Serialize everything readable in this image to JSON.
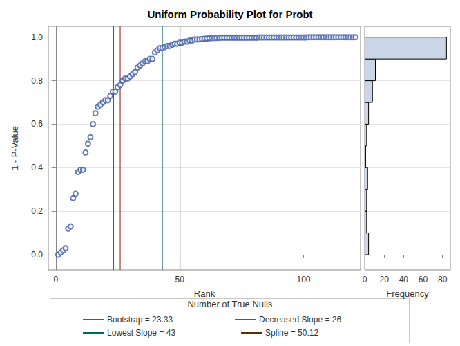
{
  "chart_data": [
    {
      "type": "scatter",
      "title": "Uniform Probability Plot for Probt",
      "x_label": "Rank",
      "y_label": "1 - P-Value",
      "x": [
        1,
        2,
        3,
        4,
        5,
        6,
        7,
        8,
        9,
        10,
        11,
        12,
        13,
        14,
        15,
        16,
        17,
        18,
        19,
        20,
        21,
        22,
        23,
        24,
        25,
        26,
        27,
        28,
        29,
        30,
        31,
        32,
        33,
        34,
        35,
        36,
        37,
        38,
        39,
        40,
        41,
        42,
        43,
        44,
        45,
        46,
        47,
        48,
        49,
        50,
        51,
        52,
        53,
        54,
        55,
        56,
        57,
        58,
        59,
        60,
        61,
        62,
        63,
        64,
        65,
        66,
        67,
        68,
        69,
        70,
        71,
        72,
        73,
        74,
        75,
        76,
        77,
        78,
        79,
        80,
        81,
        82,
        83,
        84,
        85,
        86,
        87,
        88,
        89,
        90,
        91,
        92,
        93,
        94,
        95,
        96,
        97,
        98,
        99,
        100,
        101,
        102,
        103,
        104,
        105,
        106,
        107,
        108,
        109,
        110,
        111,
        112,
        113,
        114,
        115,
        116,
        117,
        118,
        119,
        120,
        121
      ],
      "values": [
        0,
        0.01,
        0.02,
        0.03,
        0.12,
        0.13,
        0.26,
        0.28,
        0.38,
        0.39,
        0.39,
        0.47,
        0.51,
        0.54,
        0.6,
        0.65,
        0.68,
        0.69,
        0.7,
        0.71,
        0.71,
        0.73,
        0.75,
        0.75,
        0.77,
        0.78,
        0.8,
        0.81,
        0.81,
        0.82,
        0.83,
        0.84,
        0.86,
        0.87,
        0.88,
        0.89,
        0.89,
        0.9,
        0.9,
        0.93,
        0.94,
        0.95,
        0.95,
        0.955,
        0.96,
        0.96,
        0.965,
        0.97,
        0.97,
        0.975,
        0.975,
        0.98,
        0.98,
        0.985,
        0.985,
        0.99,
        0.99,
        0.99,
        0.992,
        0.993,
        0.994,
        0.995,
        0.996,
        0.996,
        0.997,
        0.997,
        0.998,
        0.998,
        0.998,
        0.998,
        0.998,
        0.998,
        0.998,
        0.998,
        0.998,
        0.998,
        0.998,
        0.998,
        0.998,
        0.998,
        0.998,
        0.999,
        0.999,
        0.999,
        0.999,
        0.999,
        0.999,
        0.999,
        0.999,
        0.999,
        0.999,
        0.999,
        0.999,
        0.999,
        0.999,
        0.999,
        0.999,
        0.999,
        0.999,
        0.999,
        0.999,
        1,
        1,
        1,
        1,
        1,
        1,
        1,
        1,
        1,
        1,
        1,
        1,
        1,
        1,
        1,
        1,
        1,
        1,
        1,
        1
      ],
      "xlim": [
        -3,
        123
      ],
      "xticks": [
        0,
        50,
        100
      ],
      "ylim": [
        -0.07,
        1.05
      ],
      "yticks": [
        {
          "value": 0,
          "label": "0.0"
        },
        {
          "value": 0.2,
          "label": "0.2"
        },
        {
          "value": 0.4,
          "label": "0.4"
        },
        {
          "value": 0.6,
          "label": "0.6"
        },
        {
          "value": 0.8,
          "label": "0.8"
        },
        {
          "value": 1,
          "label": "1.0"
        }
      ],
      "grid": true,
      "color": "#3f5aa8",
      "marker": "circle",
      "legend_title": "Number of True Nulls",
      "lines": [
        {
          "name": "Bootstrap = 23.33",
          "value": 23.33,
          "color": "#445694"
        },
        {
          "name": "Decreased Slope = 26",
          "value": 26,
          "color": "#a23a2e"
        },
        {
          "name": "Lowest Slope = 43",
          "value": 43,
          "color": "#01665e"
        },
        {
          "name": "Spline = 50.12",
          "value": 50.12,
          "color": "#543005"
        }
      ]
    },
    {
      "type": "histogram",
      "x_label": "Frequency",
      "bins": [
        0,
        0.1,
        0.2,
        0.3,
        0.4,
        0.5,
        0.6,
        0.7,
        0.8,
        0.9,
        1
      ],
      "counts": [
        4,
        2,
        2,
        3,
        1,
        2,
        4,
        8,
        11,
        84
      ],
      "orientation": "horizontal",
      "xlim": [
        0,
        88
      ],
      "xticks": [
        0,
        20,
        40,
        60,
        80
      ],
      "ylim": [
        -0.07,
        1.05
      ],
      "grid": true,
      "color": "#cad5e5",
      "tick_labels": "x"
    }
  ]
}
